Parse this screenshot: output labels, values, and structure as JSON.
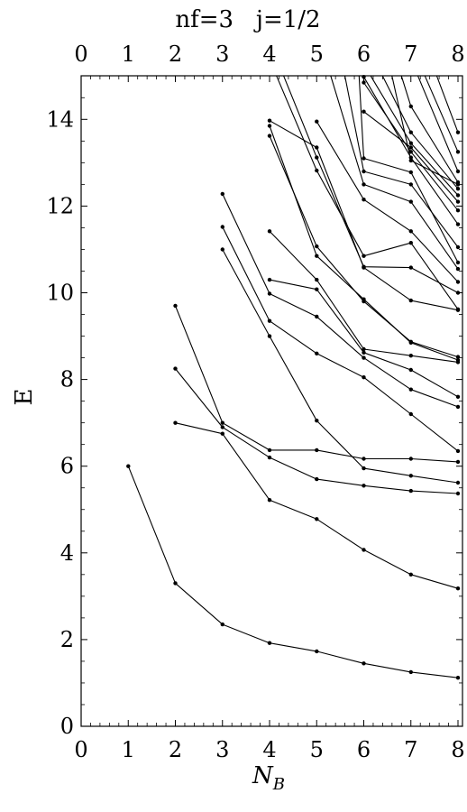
{
  "chart_data": {
    "type": "line",
    "title": "nf=3   j=1/2",
    "xlabel": "N",
    "xlabel_sub": "B",
    "ylabel": "E",
    "xlim": [
      0,
      8.1
    ],
    "ylim": [
      0,
      15
    ],
    "xticks": [
      "0",
      "1",
      "2",
      "3",
      "4",
      "5",
      "6",
      "7",
      "8"
    ],
    "yticks": [
      "0",
      "2",
      "4",
      "6",
      "8",
      "10",
      "12",
      "14"
    ],
    "top_axis_ticks": true,
    "grid": false,
    "legend": "none",
    "line_color": "#000000",
    "series": [
      {
        "points": [
          [
            1,
            6.0
          ],
          [
            2,
            3.3
          ],
          [
            3,
            2.35
          ],
          [
            4,
            1.92
          ],
          [
            5,
            1.73
          ],
          [
            6,
            1.45
          ],
          [
            7,
            1.25
          ],
          [
            8,
            1.12
          ]
        ]
      },
      {
        "points": [
          [
            2,
            7.0
          ],
          [
            3,
            6.75
          ],
          [
            4,
            5.22
          ],
          [
            5,
            4.78
          ],
          [
            6,
            4.07
          ],
          [
            7,
            3.5
          ],
          [
            8,
            3.18
          ]
        ]
      },
      {
        "points": [
          [
            2,
            8.25
          ],
          [
            3,
            6.9
          ],
          [
            4,
            6.2
          ],
          [
            5,
            5.7
          ],
          [
            6,
            5.55
          ],
          [
            7,
            5.43
          ],
          [
            8,
            5.37
          ]
        ]
      },
      {
        "points": [
          [
            2,
            9.7
          ],
          [
            3,
            7.0
          ],
          [
            4,
            6.37
          ],
          [
            5,
            6.37
          ],
          [
            6,
            6.17
          ],
          [
            7,
            6.17
          ],
          [
            8,
            6.1
          ]
        ]
      },
      {
        "points": [
          [
            3,
            11.0
          ],
          [
            4,
            9.0
          ],
          [
            5,
            7.05
          ],
          [
            6,
            5.95
          ],
          [
            7,
            5.78
          ],
          [
            8,
            5.62
          ]
        ]
      },
      {
        "points": [
          [
            3,
            11.52
          ],
          [
            4,
            9.35
          ],
          [
            5,
            8.6
          ],
          [
            6,
            8.05
          ],
          [
            7,
            7.2
          ],
          [
            8,
            6.35
          ]
        ]
      },
      {
        "points": [
          [
            3,
            12.28
          ],
          [
            4,
            9.98
          ],
          [
            5,
            9.45
          ],
          [
            6,
            8.5
          ],
          [
            7,
            7.77
          ],
          [
            8,
            7.37
          ]
        ]
      },
      {
        "points": [
          [
            4,
            10.3
          ],
          [
            5,
            10.08
          ],
          [
            6,
            8.62
          ],
          [
            7,
            8.22
          ],
          [
            8,
            7.6
          ]
        ]
      },
      {
        "points": [
          [
            4,
            11.42
          ],
          [
            5,
            10.3
          ],
          [
            6,
            8.7
          ],
          [
            7,
            8.55
          ],
          [
            8,
            8.4
          ]
        ]
      },
      {
        "points": [
          [
            4,
            13.62
          ],
          [
            5,
            11.07
          ],
          [
            6,
            9.8
          ],
          [
            7,
            8.87
          ],
          [
            8,
            8.52
          ]
        ]
      },
      {
        "points": [
          [
            4,
            13.85
          ],
          [
            5,
            10.85
          ],
          [
            6,
            9.85
          ],
          [
            7,
            8.85
          ],
          [
            8,
            8.45
          ]
        ]
      },
      {
        "points": [
          [
            4,
            13.97
          ],
          [
            5,
            13.35
          ],
          [
            6,
            10.58
          ],
          [
            7,
            9.82
          ],
          [
            8,
            9.6
          ]
        ]
      },
      {
        "points": [
          [
            4.3,
            15.0
          ],
          [
            5,
            13.12
          ],
          [
            6,
            10.6
          ],
          [
            7,
            10.58
          ],
          [
            8,
            10.0
          ]
        ]
      },
      {
        "points": [
          [
            4.15,
            15.0
          ],
          [
            5,
            12.82
          ],
          [
            6,
            10.85
          ],
          [
            7,
            11.15
          ],
          [
            8,
            9.62
          ]
        ]
      },
      {
        "points": [
          [
            5,
            13.95
          ],
          [
            6,
            12.15
          ],
          [
            7,
            11.42
          ],
          [
            8,
            10.25
          ]
        ]
      },
      {
        "points": [
          [
            5.3,
            15.0
          ],
          [
            6,
            12.5
          ],
          [
            7,
            12.1
          ],
          [
            8,
            10.55
          ]
        ]
      },
      {
        "points": [
          [
            5.6,
            15.0
          ],
          [
            6,
            12.8
          ],
          [
            7,
            12.5
          ],
          [
            8,
            11.05
          ]
        ]
      },
      {
        "points": [
          [
            5.9,
            15.0
          ],
          [
            6,
            13.1
          ],
          [
            7,
            12.78
          ],
          [
            8,
            10.7
          ]
        ]
      },
      {
        "points": [
          [
            6.0,
            14.98
          ],
          [
            7,
            13.12
          ],
          [
            8,
            11.58
          ]
        ]
      },
      {
        "points": [
          [
            6.0,
            14.85
          ],
          [
            7,
            13.25
          ],
          [
            8,
            11.9
          ]
        ]
      },
      {
        "points": [
          [
            6.0,
            14.18
          ],
          [
            7,
            13.35
          ],
          [
            8,
            12.1
          ]
        ]
      },
      {
        "points": [
          [
            6.15,
            15.0
          ],
          [
            7,
            13.45
          ],
          [
            8,
            12.25
          ]
        ]
      },
      {
        "points": [
          [
            6.4,
            15.0
          ],
          [
            7,
            13.7
          ],
          [
            8,
            12.4
          ]
        ]
      },
      {
        "points": [
          [
            6.6,
            15.0
          ],
          [
            7,
            13.05
          ],
          [
            8,
            12.5
          ]
        ]
      },
      {
        "points": [
          [
            6.8,
            15.0
          ],
          [
            7,
            14.3
          ],
          [
            8,
            12.55
          ]
        ]
      },
      {
        "points": [
          [
            7.3,
            15.0
          ],
          [
            8,
            13.25
          ]
        ]
      },
      {
        "points": [
          [
            7.55,
            15.0
          ],
          [
            8,
            13.7
          ]
        ]
      },
      {
        "points": [
          [
            7.15,
            15.0
          ],
          [
            8,
            12.8
          ]
        ]
      }
    ]
  }
}
